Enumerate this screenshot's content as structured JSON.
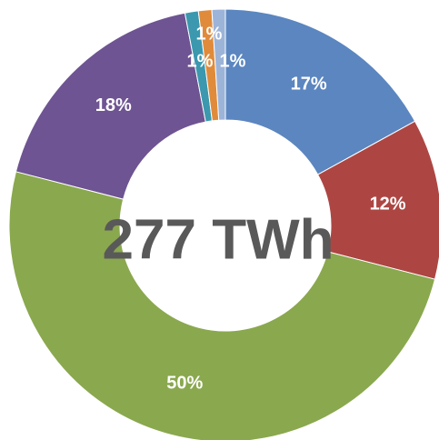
{
  "chart_data": {
    "type": "donut",
    "center_label": "277 TWh",
    "values": [
      17,
      12,
      50,
      18,
      1,
      1,
      1
    ],
    "value_labels": [
      "17%",
      "12%",
      "50%",
      "18%",
      "1%",
      "1%",
      "1%"
    ],
    "colors": [
      "#5b86c0",
      "#ad4643",
      "#8aa84e",
      "#6e5492",
      "#3b98ae",
      "#e08b3b",
      "#9db4d9"
    ]
  }
}
